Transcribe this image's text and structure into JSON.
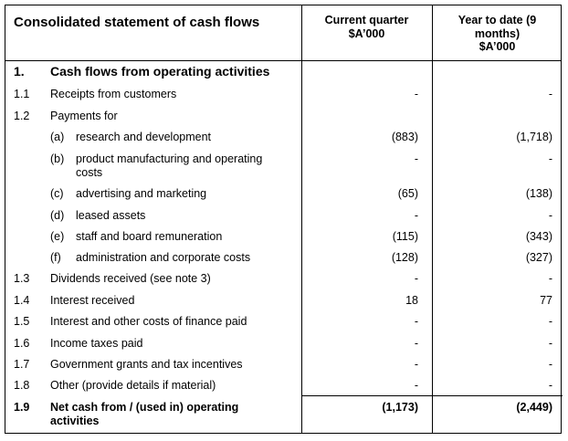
{
  "header": {
    "title": "Consolidated statement of cash flows",
    "col1_line1": "Current quarter",
    "col1_line2": "$A’000",
    "col2_line1": "Year to date (9",
    "col2_line2": "months)",
    "col2_line3": "$A’000"
  },
  "section": {
    "num": "1.",
    "title": "Cash flows from operating activities"
  },
  "rows": [
    {
      "num": "1.1",
      "label": "Receipts from customers",
      "current": "-",
      "ytd": "-"
    },
    {
      "num": "1.2",
      "label": "Payments for",
      "current": "",
      "ytd": ""
    },
    {
      "num": "",
      "sub": "(a)",
      "label": "research and development",
      "current": "(883)",
      "ytd": "(1,718)"
    },
    {
      "num": "",
      "sub": "(b)",
      "label": "product manufacturing and operating",
      "label2": "costs",
      "current": "-",
      "ytd": "-"
    },
    {
      "num": "",
      "sub": "(c)",
      "label": "advertising and marketing",
      "current": "(65)",
      "ytd": "(138)"
    },
    {
      "num": "",
      "sub": "(d)",
      "label": "leased assets",
      "current": "-",
      "ytd": "-"
    },
    {
      "num": "",
      "sub": "(e)",
      "label": "staff and board remuneration",
      "current": "(115)",
      "ytd": "(343)"
    },
    {
      "num": "",
      "sub": "(f)",
      "label": "administration and corporate costs",
      "current": "(128)",
      "ytd": "(327)"
    },
    {
      "num": "1.3",
      "label": "Dividends received (see note 3)",
      "current": "-",
      "ytd": "-"
    },
    {
      "num": "1.4",
      "label": "Interest received",
      "current": "18",
      "ytd": "77"
    },
    {
      "num": "1.5",
      "label": "Interest and other costs of finance paid",
      "current": "-",
      "ytd": "-"
    },
    {
      "num": "1.6",
      "label": "Income taxes paid",
      "current": "-",
      "ytd": "-"
    },
    {
      "num": "1.7",
      "label": "Government grants and tax incentives",
      "current": "-",
      "ytd": "-"
    },
    {
      "num": "1.8",
      "label": "Other (provide details if material)",
      "current": "-",
      "ytd": "-"
    }
  ],
  "total": {
    "num": "1.9",
    "label": "Net cash from / (used in) operating",
    "label2": "activities",
    "current": "(1,173)",
    "ytd": "(2,449)"
  }
}
